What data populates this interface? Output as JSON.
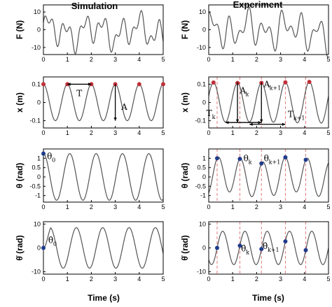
{
  "chart_data": {
    "type": "line",
    "columns": [
      "Simulation",
      "Experiment"
    ],
    "xlabel": "Time (s)",
    "x_ticks": [
      "0",
      "1",
      "2",
      "3",
      "4",
      "5"
    ],
    "xlim": [
      0,
      5
    ],
    "rows": [
      {
        "key": "F",
        "ylabel": "F (N)",
        "ylim": [
          -14,
          14
        ],
        "y_ticks": [
          "10",
          "0",
          "-10"
        ],
        "y_tick_values": [
          10,
          0,
          -10
        ]
      },
      {
        "key": "x",
        "ylabel": "x (m)",
        "ylim": [
          -0.14,
          0.14
        ],
        "y_ticks": [
          "0.1",
          "0",
          "-0.1"
        ],
        "y_tick_values": [
          0.1,
          0,
          -0.1
        ]
      },
      {
        "key": "theta",
        "ylabel": "θ (rad)",
        "ylim": [
          -1.35,
          1.5
        ],
        "y_ticks": [
          "1",
          "0.5",
          "0",
          "-0.5",
          "-1"
        ],
        "y_tick_values": [
          1,
          0.5,
          0,
          -0.5,
          -1
        ]
      },
      {
        "key": "thetadot",
        "ylabel": "θ̇ (rad)",
        "ylim": [
          -11,
          11
        ],
        "y_ticks": [
          "10",
          "0",
          "-10"
        ],
        "y_tick_values": [
          10,
          0,
          -10
        ]
      }
    ],
    "series": {
      "sim_x_period": 1,
      "sim_x_amplitude": 0.1,
      "sim_theta_period": 1.1,
      "sim_theta_amplitude": 1.25,
      "sim_thetadot_amplitude": 8.5,
      "exp_x_marker_times": [
        0.2,
        1.2,
        2.2,
        3.2,
        4.2
      ],
      "exp_theta_marker_times": [
        0.35,
        1.3,
        2.2,
        3.2,
        4.05
      ],
      "exp_dashed_times": [
        0.35,
        1.3,
        2.2,
        3.2,
        4.05
      ]
    },
    "annotations": {
      "sim_x_period": "T",
      "sim_x_amp": "A",
      "sim_theta": "θ",
      "sim_theta_sub": "0",
      "sim_thetadot": "θ̇",
      "sim_thetadot_sub": "0",
      "exp_x_ak": "A",
      "exp_x_ak_sub": "k",
      "exp_x_ak1": "A",
      "exp_x_ak1_sub": "k+1",
      "exp_x_tk": "T",
      "exp_x_tk_sub": "k",
      "exp_x_tk1": "T",
      "exp_x_tk1_sub": "k+1",
      "exp_theta_k": "θ",
      "exp_theta_k_sub": "k",
      "exp_theta_k1": "θ",
      "exp_theta_k1_sub": "k+1",
      "exp_thetadot_k": "θ̇",
      "exp_thetadot_k_sub": "k",
      "exp_thetadot_k1": "θ̇",
      "exp_thetadot_k1_sub": "k+1"
    },
    "colors": {
      "curve": "#555555",
      "marker_red": "#c0303a",
      "marker_blue": "#1f3b8c",
      "dashed": "#e57a7a"
    }
  }
}
